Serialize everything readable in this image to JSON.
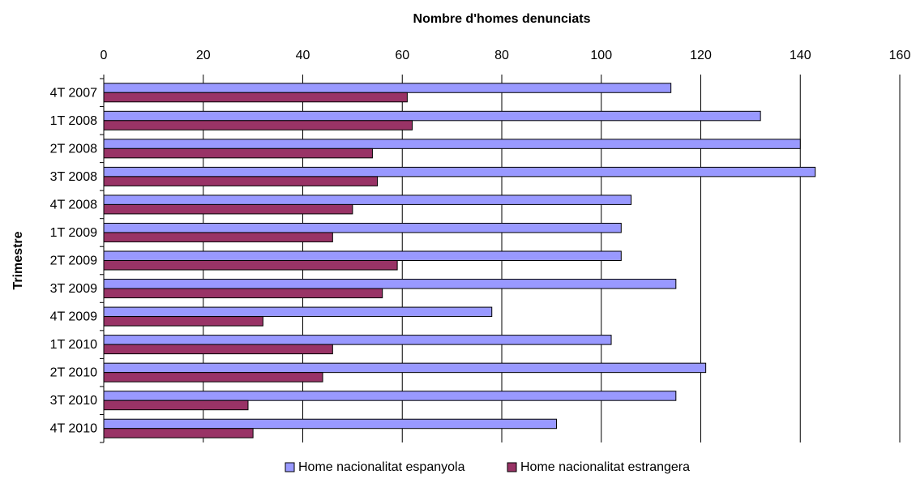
{
  "chart_data": {
    "type": "bar",
    "orientation": "horizontal",
    "title": "",
    "xlabel": "Nombre d'homes denunciats",
    "ylabel": "Trimestre",
    "xlim": [
      0,
      160
    ],
    "x_ticks": [
      0,
      20,
      40,
      60,
      80,
      100,
      120,
      140,
      160
    ],
    "grid": "vertical",
    "legend_position": "bottom",
    "categories": [
      "4T 2007",
      "1T 2008",
      "2T 2008",
      "3T 2008",
      "4T 2008",
      "1T 2009",
      "2T 2009",
      "3T 2009",
      "4T 2009",
      "1T 2010",
      "2T 2010",
      "3T 2010",
      "4T 2010"
    ],
    "series": [
      {
        "name": "Home nacionalitat espanyola",
        "color": "#9999FF",
        "values": [
          114,
          132,
          140,
          143,
          106,
          104,
          104,
          115,
          78,
          102,
          121,
          115,
          91
        ]
      },
      {
        "name": "Home nacionalitat estrangera",
        "color": "#993366",
        "values": [
          61,
          62,
          54,
          55,
          50,
          46,
          59,
          56,
          32,
          46,
          44,
          29,
          30
        ]
      }
    ]
  }
}
